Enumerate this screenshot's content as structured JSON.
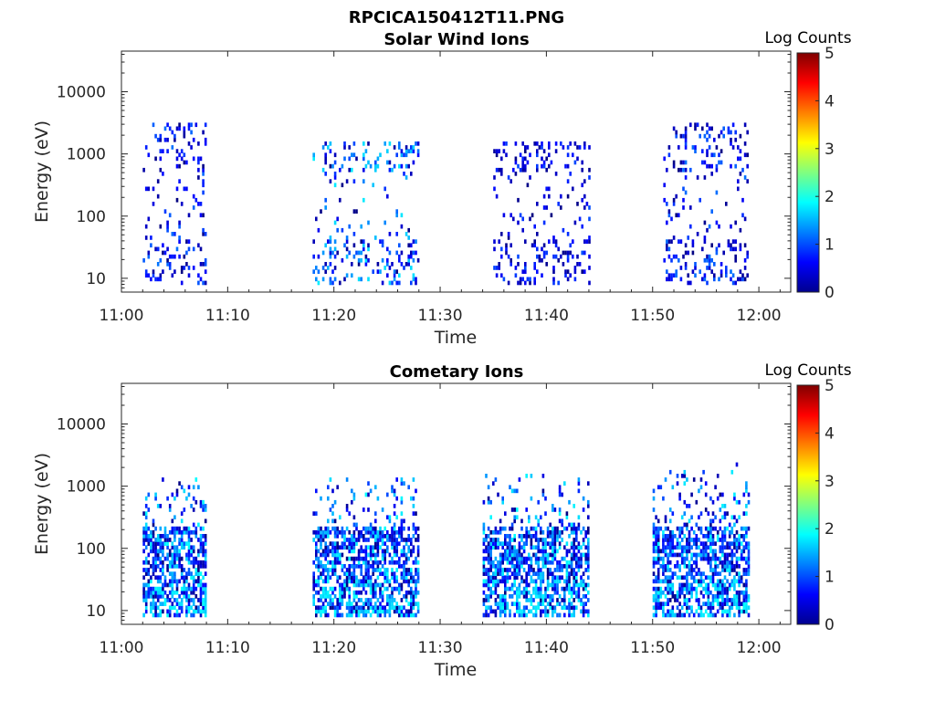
{
  "figure": {
    "title": "RPCICA150412T11.PNG"
  },
  "colormap": {
    "name": "jet",
    "stops": [
      "#00008f",
      "#0000ff",
      "#00ffff",
      "#ffff00",
      "#ff0000",
      "#800000"
    ]
  },
  "chart_data": [
    {
      "type": "heatmap",
      "title": "Solar Wind Ions",
      "xlabel": "Time",
      "ylabel": "Energy (eV)",
      "yscale": "log",
      "ylim": [
        6,
        45000
      ],
      "xlim": [
        "11:00",
        "12:03"
      ],
      "x_ticks": [
        "11:00",
        "11:10",
        "11:20",
        "11:30",
        "11:40",
        "11:50",
        "12:00"
      ],
      "y_ticks": [
        10,
        100,
        1000,
        10000
      ],
      "y_tick_labels": [
        "10",
        "100",
        "1000",
        "10000"
      ],
      "colorbar": {
        "label": "Log Counts",
        "range": [
          0,
          5
        ],
        "ticks": [
          "0",
          "1",
          "2",
          "3",
          "4",
          "5"
        ]
      },
      "grid": false,
      "bursts": [
        {
          "start": "11:02",
          "end": "11:08",
          "e_min": 8,
          "e_max": 2800,
          "max_log_counts": 1.2
        },
        {
          "start": "11:18",
          "end": "11:28",
          "e_min": 8,
          "e_max": 1500,
          "max_log_counts": 1.8
        },
        {
          "start": "11:35",
          "end": "11:44",
          "e_min": 8,
          "e_max": 1500,
          "max_log_counts": 1.0
        },
        {
          "start": "11:51",
          "end": "11:59",
          "e_min": 8,
          "e_max": 2800,
          "max_log_counts": 1.2
        }
      ]
    },
    {
      "type": "heatmap",
      "title": "Cometary Ions",
      "xlabel": "Time",
      "ylabel": "Energy (eV)",
      "yscale": "log",
      "ylim": [
        6,
        45000
      ],
      "xlim": [
        "11:00",
        "12:03"
      ],
      "x_ticks": [
        "11:00",
        "11:10",
        "11:20",
        "11:30",
        "11:40",
        "11:50",
        "12:00"
      ],
      "y_ticks": [
        10,
        100,
        1000,
        10000
      ],
      "y_tick_labels": [
        "10",
        "100",
        "1000",
        "10000"
      ],
      "colorbar": {
        "label": "Log Counts",
        "range": [
          0,
          5
        ],
        "ticks": [
          "0",
          "1",
          "2",
          "3",
          "4",
          "5"
        ]
      },
      "grid": false,
      "bursts": [
        {
          "start": "11:02",
          "end": "11:08",
          "e_min": 8,
          "e_max": 1200,
          "max_log_counts": 1.9
        },
        {
          "start": "11:18",
          "end": "11:28",
          "e_min": 8,
          "e_max": 1300,
          "max_log_counts": 1.9
        },
        {
          "start": "11:34",
          "end": "11:44",
          "e_min": 8,
          "e_max": 1800,
          "max_log_counts": 1.9
        },
        {
          "start": "11:50",
          "end": "11:59",
          "e_min": 8,
          "e_max": 2500,
          "max_log_counts": 1.9
        }
      ]
    }
  ]
}
